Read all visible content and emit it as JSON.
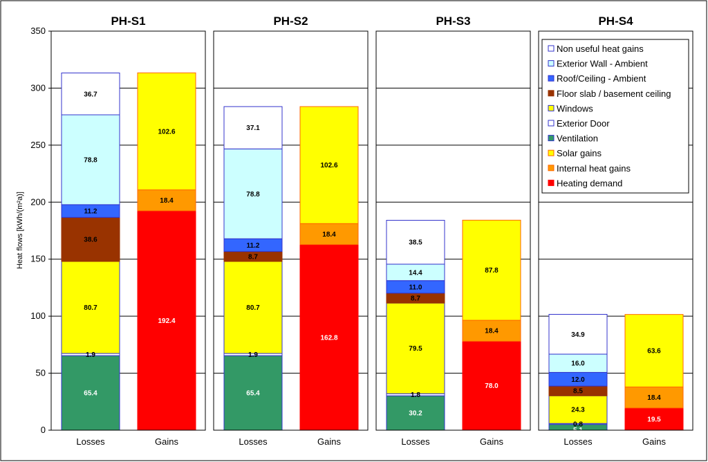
{
  "chart_data": {
    "type": "bar",
    "stacked": true,
    "ylabel": "Heat flows [kWh/(m²a)]",
    "ylim": [
      0,
      350
    ],
    "yticks": [
      0,
      50,
      100,
      150,
      200,
      250,
      300,
      350
    ],
    "grid": true,
    "legend_position": "top-right",
    "categories": [
      "Losses",
      "Gains"
    ],
    "series": [
      {
        "name": "Non useful heat gains",
        "color": "#ffffff",
        "stroke": "#3333cc"
      },
      {
        "name": "Exterior Wall - Ambient",
        "color": "#ccffff",
        "stroke": "#3333cc"
      },
      {
        "name": "Roof/Ceiling - Ambient",
        "color": "#3366ff",
        "stroke": "#3333cc"
      },
      {
        "name": "Floor slab / basement ceiling",
        "color": "#993300",
        "stroke": "#993300"
      },
      {
        "name": "Windows",
        "color": "#ffff00",
        "stroke": "#3333cc"
      },
      {
        "name": "Exterior Door",
        "color": "#ffffff",
        "stroke": "#3333cc"
      },
      {
        "name": "Ventilation",
        "color": "#339966",
        "stroke": "#3333cc"
      },
      {
        "name": "Solar gains",
        "color": "#ffff00",
        "stroke": "#ff6600"
      },
      {
        "name": "Internal heat gains",
        "color": "#ff9900",
        "stroke": "#ff6600"
      },
      {
        "name": "Heating demand",
        "color": "#ff0000",
        "stroke": "#ff0000"
      }
    ],
    "panels": [
      {
        "title": "PH-S1",
        "losses": [
          {
            "series": "Ventilation",
            "value": 65.4,
            "label": "65.4"
          },
          {
            "series": "Exterior Door",
            "value": 1.9,
            "label": "1.9"
          },
          {
            "series": "Windows",
            "value": 80.7,
            "label": "80.7"
          },
          {
            "series": "Floor slab / basement ceiling",
            "value": 38.6,
            "label": "38.6"
          },
          {
            "series": "Roof/Ceiling - Ambient",
            "value": 11.2,
            "label": "11.2"
          },
          {
            "series": "Exterior Wall - Ambient",
            "value": 78.8,
            "label": "78.8"
          },
          {
            "series": "Non useful heat gains",
            "value": 36.7,
            "label": "36.7"
          }
        ],
        "gains": [
          {
            "series": "Heating demand",
            "value": 192.4,
            "label": "192.4"
          },
          {
            "series": "Internal heat gains",
            "value": 18.4,
            "label": "18.4"
          },
          {
            "series": "Solar gains",
            "value": 102.6,
            "label": "102.6"
          }
        ]
      },
      {
        "title": "PH-S2",
        "losses": [
          {
            "series": "Ventilation",
            "value": 65.4,
            "label": "65.4"
          },
          {
            "series": "Exterior Door",
            "value": 1.9,
            "label": "1.9"
          },
          {
            "series": "Windows",
            "value": 80.7,
            "label": "80.7"
          },
          {
            "series": "Floor slab / basement ceiling",
            "value": 8.7,
            "label": "8.7"
          },
          {
            "series": "Roof/Ceiling - Ambient",
            "value": 11.2,
            "label": "11.2"
          },
          {
            "series": "Exterior Wall - Ambient",
            "value": 78.8,
            "label": "78.8"
          },
          {
            "series": "Non useful heat gains",
            "value": 37.1,
            "label": "37.1"
          }
        ],
        "gains": [
          {
            "series": "Heating demand",
            "value": 162.8,
            "label": "162.8"
          },
          {
            "series": "Internal heat gains",
            "value": 18.4,
            "label": "18.4"
          },
          {
            "series": "Solar gains",
            "value": 102.6,
            "label": "102.6"
          }
        ]
      },
      {
        "title": "PH-S3",
        "losses": [
          {
            "series": "Ventilation",
            "value": 30.2,
            "label": "30.2"
          },
          {
            "series": "Exterior Door",
            "value": 1.8,
            "label": "1.8"
          },
          {
            "series": "Windows",
            "value": 79.5,
            "label": "79.5"
          },
          {
            "series": "Floor slab / basement ceiling",
            "value": 8.7,
            "label": "8.7"
          },
          {
            "series": "Roof/Ceiling - Ambient",
            "value": 11.0,
            "label": "11.0"
          },
          {
            "series": "Exterior Wall - Ambient",
            "value": 14.4,
            "label": "14.4"
          },
          {
            "series": "Non useful heat gains",
            "value": 38.5,
            "label": "38.5"
          }
        ],
        "gains": [
          {
            "series": "Heating demand",
            "value": 78.0,
            "label": "78.0"
          },
          {
            "series": "Internal heat gains",
            "value": 18.4,
            "label": "18.4"
          },
          {
            "series": "Solar gains",
            "value": 87.8,
            "label": "87.8"
          }
        ]
      },
      {
        "title": "PH-S4",
        "losses": [
          {
            "series": "Ventilation",
            "value": 5.1,
            "label": "5.1"
          },
          {
            "series": "Exterior Door",
            "value": 0.8,
            "label": "0.8"
          },
          {
            "series": "Windows",
            "value": 24.3,
            "label": "24.3"
          },
          {
            "series": "Floor slab / basement ceiling",
            "value": 8.5,
            "label": "8.5"
          },
          {
            "series": "Roof/Ceiling - Ambient",
            "value": 12.0,
            "label": "12.0"
          },
          {
            "series": "Exterior Wall - Ambient",
            "value": 16.0,
            "label": "16.0"
          },
          {
            "series": "Non useful heat gains",
            "value": 34.9,
            "label": "34.9"
          }
        ],
        "gains": [
          {
            "series": "Heating demand",
            "value": 19.5,
            "label": "19.5"
          },
          {
            "series": "Internal heat gains",
            "value": 18.4,
            "label": "18.4"
          },
          {
            "series": "Solar gains",
            "value": 63.6,
            "label": "63.6"
          }
        ]
      }
    ]
  }
}
